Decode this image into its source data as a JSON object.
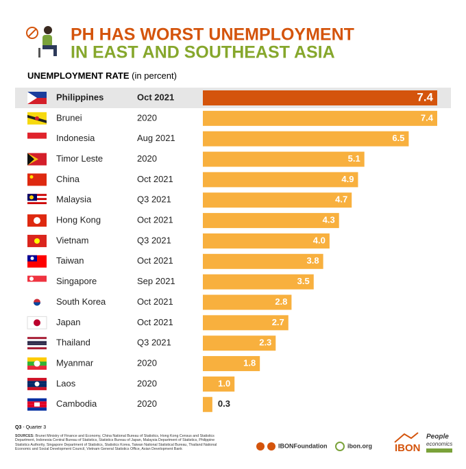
{
  "chart_data": {
    "type": "bar",
    "title": [
      "PH HAS WORST UNEMPLOYMENT",
      "IN EAST AND SOUTHEAST ASIA"
    ],
    "subtitle": "UNEMPLOYMENT RATE",
    "subtitle_note": "(in percent)",
    "categories": [
      "Philippines",
      "Brunei",
      "Indonesia",
      "Timor Leste",
      "China",
      "Malaysia",
      "Hong Kong",
      "Vietnam",
      "Taiwan",
      "Singapore",
      "South Korea",
      "Japan",
      "Thailand",
      "Myanmar",
      "Laos",
      "Cambodia"
    ],
    "periods": [
      "Oct 2021",
      "2020",
      "Aug 2021",
      "2020",
      "Oct 2021",
      "Q3 2021",
      "Oct 2021",
      "Q3 2021",
      "Oct 2021",
      "Sep 2021",
      "Oct 2021",
      "Oct 2021",
      "Q3 2021",
      "2020",
      "2020",
      "2020"
    ],
    "values": [
      7.4,
      7.4,
      6.5,
      5.1,
      4.9,
      4.7,
      4.3,
      4,
      3.8,
      3.5,
      2.8,
      2.7,
      2.3,
      1.8,
      1,
      0.3
    ],
    "value_labels": [
      "7.4",
      "7.4",
      "6.5",
      "5.1",
      "4.9",
      "4.7",
      "4.3",
      "4.0",
      "3.8",
      "3.5",
      "2.8",
      "2.7",
      "2.3",
      "1.8",
      "1.0",
      "0.3"
    ],
    "colors": [
      "#d4540c",
      "#f8b03e",
      "#f8b03e",
      "#f8b03e",
      "#f8b03e",
      "#f8b03e",
      "#f8b03e",
      "#f8b03e",
      "#f8b03e",
      "#f8b03e",
      "#f8b03e",
      "#f8b03e",
      "#f8b03e",
      "#f8b03e",
      "#f8b03e",
      "#f8b03e"
    ]
  },
  "footnote": {
    "term": "Q3",
    "text": "- Quarter 3"
  },
  "sources": {
    "label": "SOURCES:",
    "text": "Brunei Ministry of Finance and Economy, China National Bureau of Statistics, Hong Kong Census and Statistics Department, Indonesia Central Bureau of Statistics, Statistics Bureau of Japan, Malaysia Department of Statistics, Philippine Statistics Authority, Singapore Department of Statistics, Statistics Korea, Taiwan National Statistical Bureau, Thailand National Economic and Social Development Council, Vietnam General Statistics Office, Asian Development Bank"
  },
  "footer": {
    "social": "IBONFoundation",
    "website": "ibon.org",
    "logo": "IBON",
    "brand": [
      "People",
      "economics"
    ]
  }
}
